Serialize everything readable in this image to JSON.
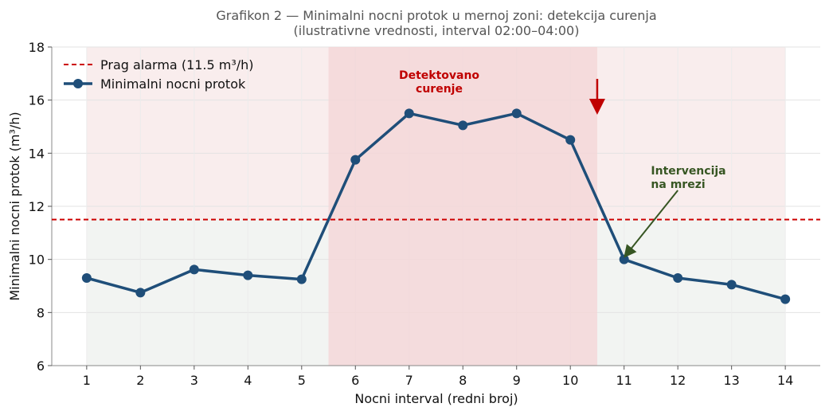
{
  "chart_data": {
    "type": "line",
    "title": "Grafikon 2 — Minimalni nocni protok u mernoj zoni: detekcija curenja",
    "subtitle": "(ilustrativne vrednosti, interval 02:00–04:00)",
    "xlabel": "Nocni interval (redni broj)",
    "ylabel": "Minimalni nocni protok (m³/h)",
    "xlim": [
      0.35,
      14.65
    ],
    "ylim": [
      6,
      18
    ],
    "xticks": [
      1,
      2,
      3,
      4,
      5,
      6,
      7,
      8,
      9,
      10,
      11,
      12,
      13,
      14
    ],
    "yticks": [
      6,
      8,
      10,
      12,
      14,
      16,
      18
    ],
    "grid": true,
    "legend_placement": "top-left",
    "series": [
      {
        "name": "Minimalni nocni protok",
        "color": "#1f4e79",
        "x": [
          1,
          2,
          3,
          4,
          5,
          6,
          7,
          8,
          9,
          10,
          11,
          12,
          13,
          14
        ],
        "values": [
          9.3,
          8.75,
          9.62,
          9.4,
          9.25,
          13.75,
          15.5,
          15.05,
          15.5,
          14.5,
          10.0,
          9.3,
          9.05,
          8.5
        ]
      }
    ],
    "threshold": {
      "name": "Prag alarma (11.5 m³/h)",
      "value": 11.5,
      "color": "#cc0000"
    },
    "highlight_span": {
      "x": [
        5.5,
        10.5
      ],
      "color": "#f4d6d7"
    },
    "zones": {
      "above_color": "#f9eded",
      "below_color": "#f2f4f2",
      "x": [
        1,
        14
      ]
    },
    "annotations": [
      {
        "text": "Detektovano\ncurenje",
        "color": "#c00000",
        "x": 7.5,
        "y": 16.5,
        "arrow_from": [
          10.5,
          16.8
        ],
        "arrow_to": [
          10.5,
          15.6
        ]
      },
      {
        "text": "Intervencija\nna mrezi",
        "color": "#375623",
        "x": 11.5,
        "y": 13.2,
        "arrow_from": [
          12.0,
          12.6
        ],
        "arrow_to": [
          11.03,
          10.15
        ]
      }
    ]
  }
}
